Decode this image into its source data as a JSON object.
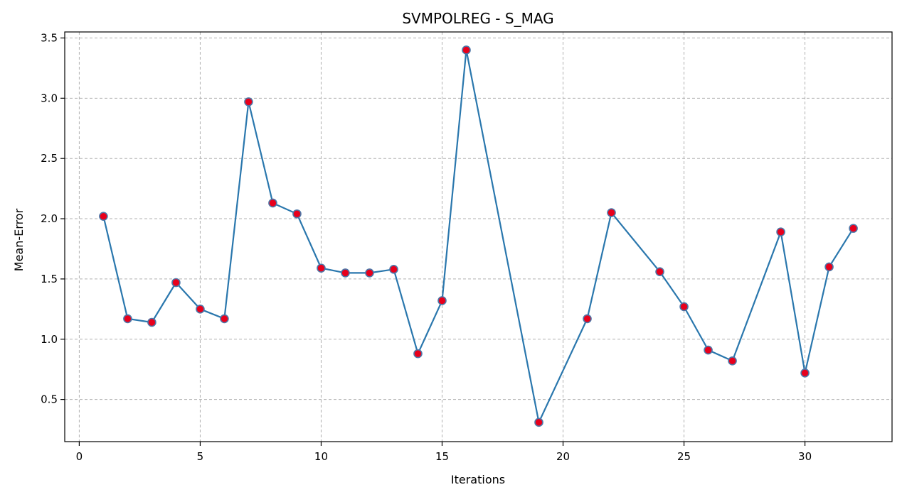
{
  "chart_data": {
    "type": "line",
    "title": "SVMPOLREG - S_MAG",
    "xlabel": "Iterations",
    "ylabel": "Mean-Error",
    "xlim": [
      -0.6,
      33.6
    ],
    "ylim": [
      0.15,
      3.55
    ],
    "xticks": [
      0,
      5,
      10,
      15,
      20,
      25,
      30
    ],
    "yticks": [
      0.5,
      1.0,
      1.5,
      2.0,
      2.5,
      3.0,
      3.5
    ],
    "ytick_labels": [
      "0.5",
      "1.0",
      "1.5",
      "2.0",
      "2.5",
      "3.0",
      "3.5"
    ],
    "grid": true,
    "line_color": "#2a77ad",
    "marker_fill": "#e8001c",
    "marker_edge": "#4d77a8",
    "series": [
      {
        "x": [
          1,
          2,
          3,
          4,
          5,
          6,
          7,
          8,
          9,
          10,
          11,
          12,
          13,
          14,
          15,
          16,
          19,
          21,
          22,
          24,
          25,
          26,
          27,
          29,
          30,
          31,
          32
        ],
        "values": [
          2.02,
          1.17,
          1.14,
          1.47,
          1.25,
          1.17,
          2.97,
          2.13,
          2.04,
          1.59,
          1.55,
          1.55,
          1.58,
          0.88,
          1.32,
          3.4,
          0.31,
          1.17,
          2.05,
          1.56,
          1.27,
          0.91,
          0.82,
          1.89,
          0.72,
          1.6,
          1.92
        ]
      }
    ]
  }
}
